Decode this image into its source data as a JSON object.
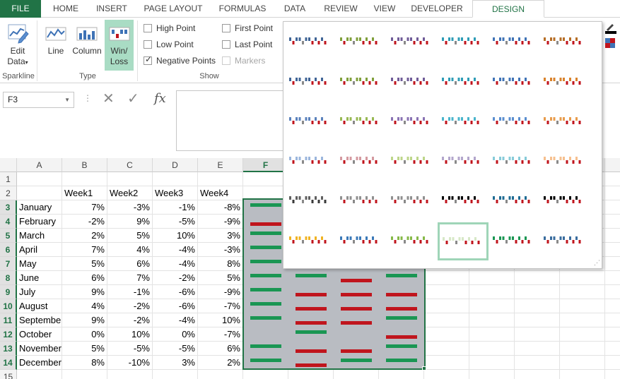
{
  "tabs": {
    "file": "FILE",
    "home": "HOME",
    "insert": "INSERT",
    "page_layout": "PAGE LAYOUT",
    "formulas": "FORMULAS",
    "data": "DATA",
    "review": "REVIEW",
    "view": "VIEW",
    "developer": "DEVELOPER",
    "design": "DESIGN"
  },
  "ribbon": {
    "edit_data": "Edit Data",
    "line": "Line",
    "column": "Column",
    "winloss": "Win/ Loss",
    "sparkline_group": "Sparkline",
    "type_group": "Type",
    "show_group": "Show",
    "high_point": "High Point",
    "low_point": "Low Point",
    "negative_points": "Negative Points",
    "first_point": "First Point",
    "last_point": "Last Point",
    "markers": "Markers"
  },
  "formula_bar": {
    "name_box": "F3",
    "fx": "fx",
    "value": ""
  },
  "grid": {
    "columns": [
      "A",
      "B",
      "C",
      "D",
      "E",
      "F"
    ],
    "rows": [
      "1",
      "2",
      "3",
      "4",
      "5",
      "6",
      "7",
      "8",
      "9",
      "10",
      "11",
      "12",
      "13",
      "14",
      "15"
    ],
    "header_row": [
      "",
      "Week1",
      "Week2",
      "Week3",
      "Week4"
    ],
    "data": [
      [
        "January",
        "7%",
        "-3%",
        "-1%",
        "-8%"
      ],
      [
        "February",
        "-2%",
        "9%",
        "-5%",
        "-9%"
      ],
      [
        "March",
        "2%",
        "5%",
        "10%",
        "3%"
      ],
      [
        "April",
        "7%",
        "4%",
        "-4%",
        "-3%"
      ],
      [
        "May",
        "5%",
        "6%",
        "-4%",
        "8%"
      ],
      [
        "June",
        "6%",
        "7%",
        "-2%",
        "5%"
      ],
      [
        "July",
        "9%",
        "-1%",
        "-6%",
        "-9%"
      ],
      [
        "August",
        "4%",
        "-2%",
        "-6%",
        "-7%"
      ],
      [
        "September",
        "9%",
        "-2%",
        "-4%",
        "10%"
      ],
      [
        "October",
        "0%",
        "10%",
        "0%",
        "-7%"
      ],
      [
        "November",
        "5%",
        "-5%",
        "-5%",
        "6%"
      ],
      [
        "December",
        "8%",
        "-10%",
        "3%",
        "2%"
      ]
    ]
  },
  "colors": {
    "win": "#1a9653",
    "loss": "#c0151d",
    "accent": "#217346",
    "sparkline_bg": "#b9bcc2"
  },
  "style_gallery": [
    [
      "#3f6496",
      "#7f9f3a",
      "#6f5b97",
      "#2d9cb6",
      "#3f73b6",
      "#b66e26"
    ],
    [
      "#3f6496",
      "#7f9f3a",
      "#6f5b97",
      "#2d9cb6",
      "#3f73b6",
      "#d9822b"
    ],
    [
      "#5b82bd",
      "#98b954",
      "#8a73b3",
      "#4ab5cc",
      "#5b8fd0",
      "#e89c4d"
    ],
    [
      "#9bb6dd",
      "#d49aa0",
      "#bdd68a",
      "#b3a6cc",
      "#87cbd9",
      "#f6c08f"
    ],
    [
      "#606060",
      "#909090",
      "#909090",
      "#000000",
      "#1f6b93",
      "#000000"
    ],
    [
      "#f0b323",
      "#3b79b8",
      "#86b948",
      "#d7e8c7",
      "#1a9653",
      "#3a6c9e"
    ]
  ],
  "sparkline_icons": {
    "edit_data": "edit-data-icon",
    "line": "line-sparkline-icon",
    "column": "column-sparkline-icon",
    "winloss": "winloss-sparkline-icon",
    "cancel": "cancel-icon",
    "enter": "check-icon",
    "fx": "function-icon"
  }
}
